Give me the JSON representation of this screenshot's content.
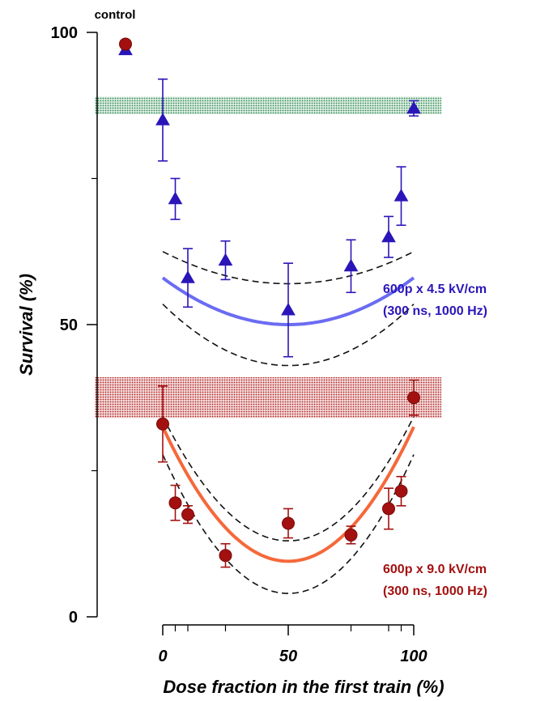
{
  "chart_data": {
    "type": "scatter",
    "title": "",
    "xlabel": "Dose fraction in the first train (%)",
    "ylabel": "Survival  (%)",
    "xlim": [
      0,
      100
    ],
    "ylim": [
      0,
      100
    ],
    "x_ticks": [
      "0",
      "50",
      "100"
    ],
    "y_ticks": [
      "0",
      "50",
      "100"
    ],
    "control_label": "control",
    "series": [
      {
        "marker": "triangle",
        "color": "#2a16b8",
        "fit_color": "#6b6cf2",
        "annotation": [
          "600p x 4.5 kV/cm",
          "(300 ns, 1000 Hz)"
        ],
        "control": {
          "y": 97,
          "err": 0
        },
        "band": [
          86,
          89
        ],
        "band_color": "#2e8b57",
        "points": [
          {
            "x": 0,
            "y": 85,
            "err": 7
          },
          {
            "x": 5,
            "y": 71.5,
            "err": 3.5
          },
          {
            "x": 10,
            "y": 58,
            "err": 5
          },
          {
            "x": 25,
            "y": 61,
            "err": 3.3
          },
          {
            "x": 50,
            "y": 52.5,
            "err": 8
          },
          {
            "x": 75,
            "y": 60,
            "err": 4.5
          },
          {
            "x": 90,
            "y": 65,
            "err": 3.5
          },
          {
            "x": 95,
            "y": 72,
            "err": 5
          },
          {
            "x": 100,
            "y": 87,
            "err": 1.3
          }
        ],
        "fit": {
          "a": 50,
          "b": 0.0032
        },
        "ci_upper": {
          "a": 57,
          "b": 0.0022
        },
        "ci_lower": {
          "a": 43,
          "b": 0.0042
        }
      },
      {
        "marker": "circle",
        "color": "#a31010",
        "fit_color": "#f5683a",
        "annotation": [
          "600p x 9.0 kV/cm",
          "(300 ns, 1000 Hz)"
        ],
        "control": {
          "y": 98,
          "err": 0
        },
        "band": [
          34,
          41
        ],
        "band_color": "#b22222",
        "points": [
          {
            "x": 0,
            "y": 33,
            "err": 6.5
          },
          {
            "x": 5,
            "y": 19.5,
            "err": 3
          },
          {
            "x": 10,
            "y": 17.5,
            "err": 1.5
          },
          {
            "x": 25,
            "y": 10.5,
            "err": 2
          },
          {
            "x": 50,
            "y": 16,
            "err": 2.5
          },
          {
            "x": 75,
            "y": 14,
            "err": 1.5
          },
          {
            "x": 90,
            "y": 18.5,
            "err": 3.5
          },
          {
            "x": 95,
            "y": 21.5,
            "err": 2.5
          },
          {
            "x": 100,
            "y": 37.5,
            "err": 3
          }
        ],
        "fit": {
          "a": 9.5,
          "b": 0.0092
        },
        "ci_upper": {
          "a": 13,
          "b": 0.0085
        },
        "ci_lower": {
          "a": 4,
          "b": 0.0095
        }
      }
    ]
  }
}
